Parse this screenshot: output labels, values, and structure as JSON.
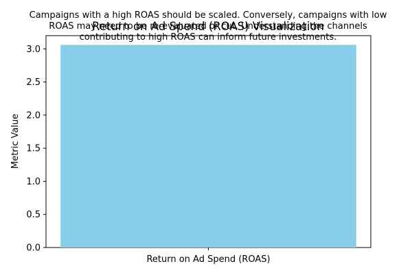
{
  "chart_data": {
    "type": "bar",
    "title": "Return on Ad Spend (ROAS) Visualization",
    "annotation_lines": [
      "Campaigns with a high ROAS should be scaled. Conversely, campaigns with low",
      "ROAS may need to be re-evaluated or cut. Understanding the channels",
      "contributing to high ROAS can inform future investments."
    ],
    "categories": [
      "Return on Ad Spend (ROAS)"
    ],
    "values": [
      3.06
    ],
    "xlabel": "",
    "ylabel": "Metric Value",
    "ylim": [
      0,
      3.2
    ],
    "yticks": [
      "0.0",
      "0.5",
      "1.0",
      "1.5",
      "2.0",
      "2.5",
      "3.0"
    ],
    "bar_color": "#87ceeb",
    "grid": false,
    "legend": "none"
  }
}
